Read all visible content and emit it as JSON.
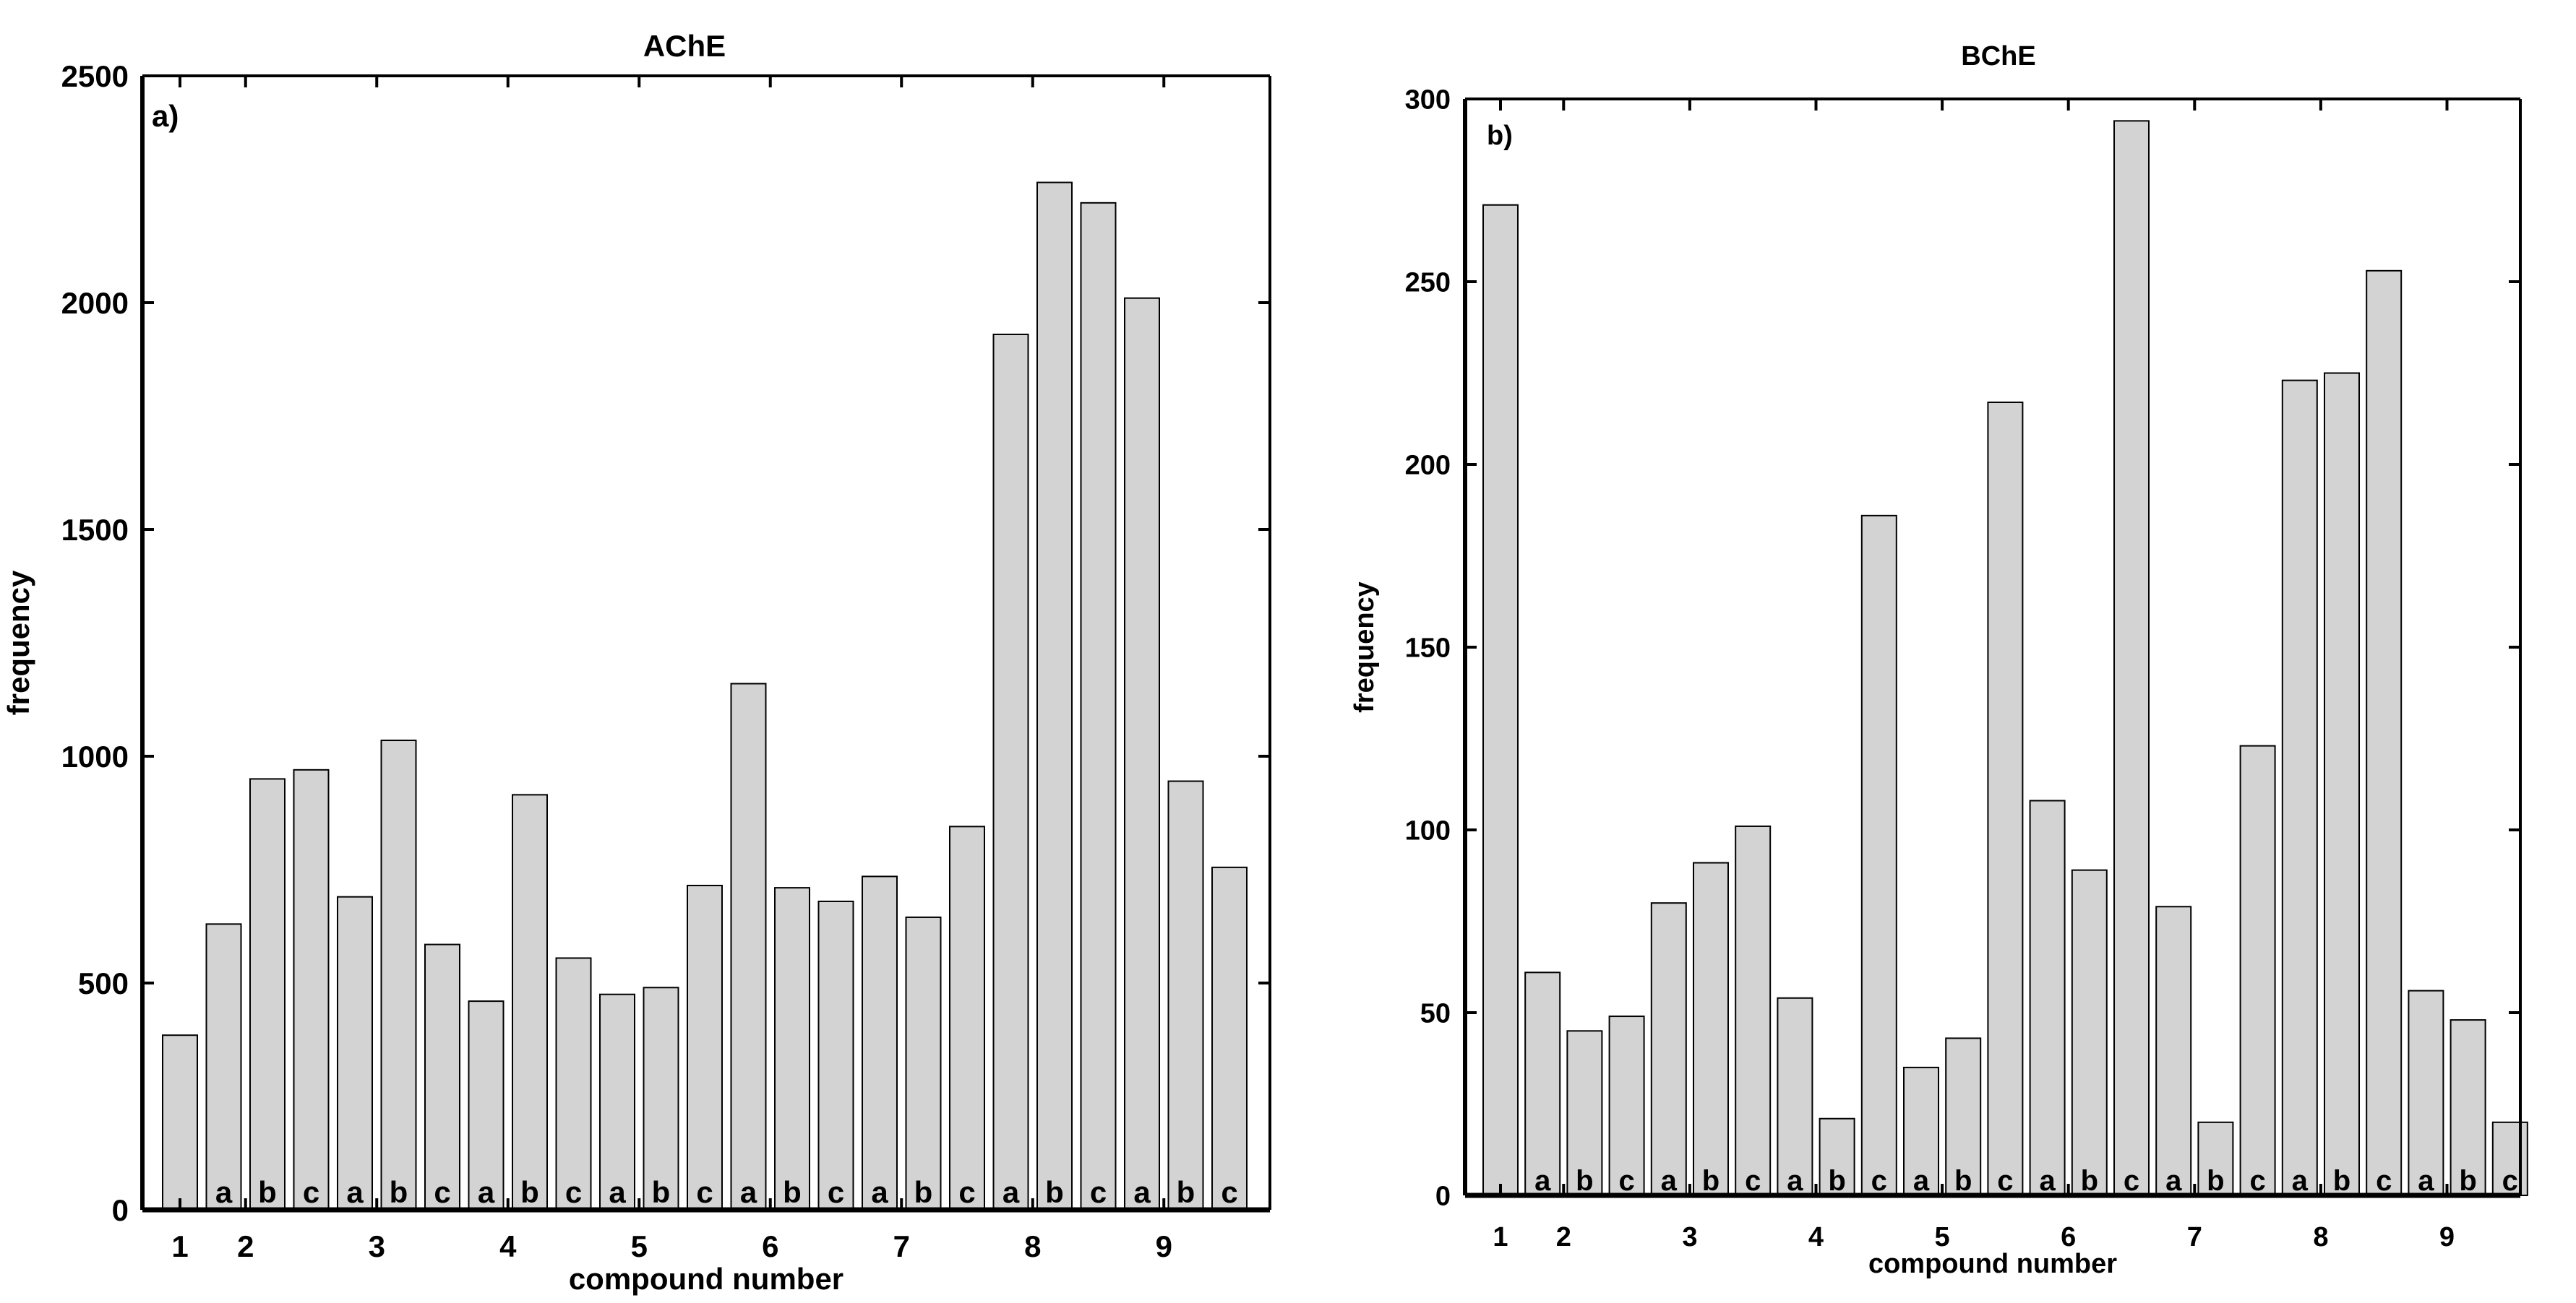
{
  "chart_data": [
    {
      "type": "bar",
      "title": "AChE",
      "panel_label": "a)",
      "xlabel": "compound number",
      "ylabel": "frequency",
      "ylim": [
        0,
        2500
      ],
      "yticks": [
        0,
        500,
        1000,
        1500,
        2000,
        2500
      ],
      "bar_color": "#d3d3d3",
      "categories": [
        "1",
        "2a",
        "2b",
        "2c",
        "3a",
        "3b",
        "3c",
        "4a",
        "4b",
        "4c",
        "5a",
        "5b",
        "5c",
        "6a",
        "6b",
        "6c",
        "7a",
        "7b",
        "7c",
        "8a",
        "8b",
        "8c",
        "9a",
        "9b",
        "9c"
      ],
      "values": [
        385,
        630,
        950,
        970,
        690,
        1035,
        585,
        460,
        915,
        555,
        475,
        490,
        715,
        1160,
        710,
        680,
        735,
        645,
        845,
        1930,
        2265,
        2220,
        2010,
        945,
        755
      ],
      "bar_sub_labels": [
        "",
        "a",
        "b",
        "c",
        "a",
        "b",
        "c",
        "a",
        "b",
        "c",
        "a",
        "b",
        "c",
        "a",
        "b",
        "c",
        "a",
        "b",
        "c",
        "a",
        "b",
        "c",
        "a",
        "b",
        "c"
      ],
      "group_labels": [
        {
          "label": "1",
          "bars": [
            0
          ]
        },
        {
          "label": "2",
          "bars": [
            1,
            2
          ]
        },
        {
          "label": "3",
          "bars": [
            4,
            5
          ]
        },
        {
          "label": "4",
          "bars": [
            7,
            8
          ]
        },
        {
          "label": "5",
          "bars": [
            10,
            11
          ]
        },
        {
          "label": "6",
          "bars": [
            13,
            14
          ]
        },
        {
          "label": "7",
          "bars": [
            16,
            17
          ]
        },
        {
          "label": "8",
          "bars": [
            19,
            20
          ]
        },
        {
          "label": "9",
          "bars": [
            22,
            23
          ]
        }
      ]
    },
    {
      "type": "bar",
      "title": "BChE",
      "panel_label": "b)",
      "xlabel": "compound number",
      "ylabel": "frequency",
      "ylim": [
        0,
        300
      ],
      "yticks": [
        0,
        50,
        100,
        150,
        200,
        250,
        300
      ],
      "bar_color": "#d3d3d3",
      "categories": [
        "1",
        "2a",
        "2b",
        "2c",
        "3a",
        "3b",
        "3c",
        "4a",
        "4b",
        "4c",
        "5a",
        "5b",
        "5c",
        "6a",
        "6b",
        "6c",
        "7a",
        "7b",
        "7c",
        "8a",
        "8b",
        "8c",
        "9a",
        "9b",
        "9c"
      ],
      "values": [
        271,
        61,
        45,
        49,
        80,
        91,
        101,
        54,
        21,
        186,
        35,
        43,
        217,
        108,
        89,
        294,
        79,
        20,
        123,
        223,
        225,
        253,
        56,
        48,
        20
      ],
      "bar_sub_labels": [
        "",
        "a",
        "b",
        "c",
        "a",
        "b",
        "c",
        "a",
        "b",
        "c",
        "a",
        "b",
        "c",
        "a",
        "b",
        "c",
        "a",
        "b",
        "c",
        "a",
        "b",
        "c",
        "a",
        "b",
        "c"
      ],
      "group_labels": [
        {
          "label": "1",
          "bars": [
            0
          ]
        },
        {
          "label": "2",
          "bars": [
            1,
            2
          ]
        },
        {
          "label": "3",
          "bars": [
            4,
            5
          ]
        },
        {
          "label": "4",
          "bars": [
            7,
            8
          ]
        },
        {
          "label": "5",
          "bars": [
            10,
            11
          ]
        },
        {
          "label": "6",
          "bars": [
            13,
            14
          ]
        },
        {
          "label": "7",
          "bars": [
            16,
            17
          ]
        },
        {
          "label": "8",
          "bars": [
            19,
            20
          ]
        },
        {
          "label": "9",
          "bars": [
            22,
            23
          ]
        }
      ]
    }
  ]
}
